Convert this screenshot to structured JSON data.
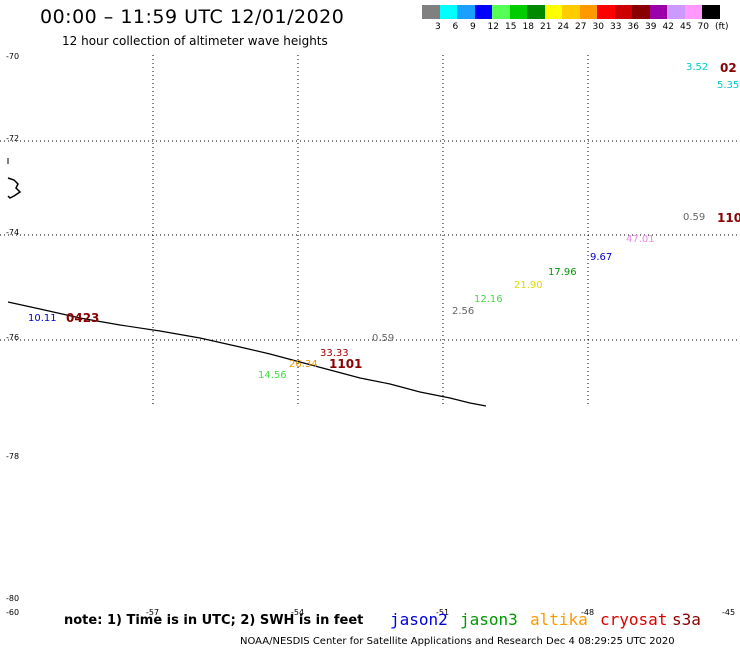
{
  "header": {
    "title": "00:00 – 11:59 UTC 12/01/2020",
    "subtitle": "12 hour collection of altimeter wave heights"
  },
  "scale": {
    "colors": [
      "#808080",
      "#00ffff",
      "#1aa0ff",
      "#0000ff",
      "#55ff55",
      "#00cc00",
      "#008800",
      "#ffff00",
      "#ffcc00",
      "#ff9900",
      "#ff0000",
      "#cc0000",
      "#880000",
      "#9900aa",
      "#cc99ff",
      "#ff99ff",
      "#000000"
    ],
    "labels": [
      "3",
      "6",
      "9",
      "12",
      "15",
      "18",
      "21",
      "24",
      "27",
      "30",
      "33",
      "36",
      "39",
      "42",
      "45",
      "70",
      "(ft)"
    ]
  },
  "grid": {
    "lat_labels": [
      "-70",
      "-72",
      "-74",
      "-76",
      "-78",
      "-80"
    ],
    "lon_labels_top": [
      "-60",
      "-57",
      "-54",
      "-51",
      "-48",
      "-45"
    ]
  },
  "observations": [
    {
      "text": "3.52",
      "color": "#00cccc"
    },
    {
      "text": "5.35",
      "color": "#00cccc"
    },
    {
      "text": "0.59",
      "color": "#666666"
    },
    {
      "text": "47.01",
      "color": "#ee88ee"
    },
    {
      "text": "9.67",
      "color": "#0000cc"
    },
    {
      "text": "17.96",
      "color": "#009900"
    },
    {
      "text": "21.90",
      "color": "#dddd00"
    },
    {
      "text": "12.16",
      "color": "#44dd44"
    },
    {
      "text": "2.56",
      "color": "#666666"
    },
    {
      "text": "10.11",
      "color": "#0000cc"
    },
    {
      "text": "0.59",
      "color": "#666666"
    },
    {
      "text": "33.33",
      "color": "#aa0000"
    },
    {
      "text": "26.34",
      "color": "#ee9900"
    },
    {
      "text": "14.56",
      "color": "#44dd44"
    }
  ],
  "pass_times": [
    {
      "text": "02"
    },
    {
      "text": "110"
    },
    {
      "text": "0423"
    },
    {
      "text": "1101"
    }
  ],
  "footer": {
    "note": "note: 1) Time is in UTC; 2) SWH is in feet",
    "satellites": [
      {
        "name": "jason2",
        "color": "#0000dd"
      },
      {
        "name": "jason3",
        "color": "#009900"
      },
      {
        "name": "altika",
        "color": "#ff9900"
      },
      {
        "name": "cryosat",
        "color": "#dd0000"
      },
      {
        "name": "s3a",
        "color": "#880000"
      }
    ],
    "credit": "NOAA/NESDIS Center for Satellite Applications and Research    Dec  4 08:29:25 UTC 2020"
  }
}
